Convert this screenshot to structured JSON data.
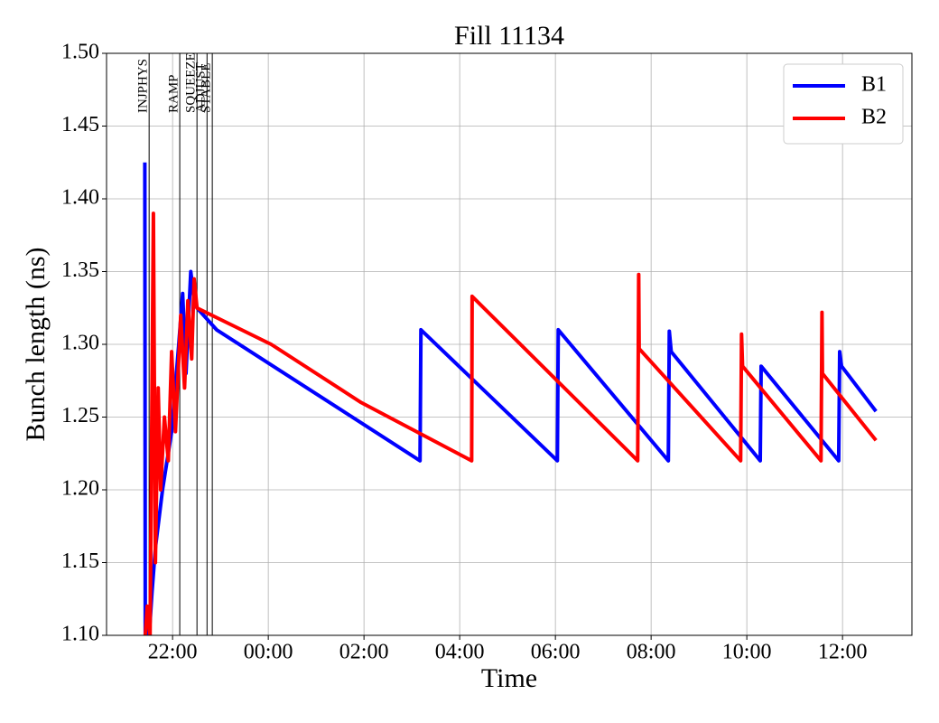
{
  "chart_data": {
    "type": "line",
    "title": "Fill 11134",
    "xlabel": "Time",
    "ylabel": "Bunch length (ns)",
    "xlim": [
      20.62,
      37.45
    ],
    "ylim": [
      1.1,
      1.5
    ],
    "xticks": [
      {
        "value": 22,
        "label": "22:00"
      },
      {
        "value": 24,
        "label": "00:00"
      },
      {
        "value": 26,
        "label": "02:00"
      },
      {
        "value": 28,
        "label": "04:00"
      },
      {
        "value": 30,
        "label": "06:00"
      },
      {
        "value": 32,
        "label": "08:00"
      },
      {
        "value": 34,
        "label": "10:00"
      },
      {
        "value": 36,
        "label": "12:00"
      }
    ],
    "yticks": [
      {
        "value": 1.1,
        "label": "1.10"
      },
      1.15,
      {
        "value": 1.2,
        "label": "1.20"
      },
      1.25,
      {
        "value": 1.3,
        "label": "1.30"
      },
      1.35,
      {
        "value": 1.4,
        "label": "1.40"
      },
      1.45,
      {
        "value": 1.5,
        "label": "1.50"
      }
    ],
    "grid": true,
    "legend": "upper right",
    "phases": [
      {
        "label": "INJPHYS",
        "x": 21.51
      },
      {
        "label": "RAMP",
        "x": 22.15
      },
      {
        "label": "SQUEEZE",
        "x": 22.51
      },
      {
        "label": "ADJUST",
        "x": 22.72
      },
      {
        "label": "STABLE",
        "x": 22.83
      }
    ],
    "series": [
      {
        "name": "B1",
        "color": "#0000ff",
        "x": [
          21.42,
          21.43,
          21.45,
          21.51,
          21.57,
          21.64,
          21.79,
          21.98,
          22.13,
          22.21,
          22.28,
          22.38,
          22.45,
          22.51,
          22.92,
          27.17,
          27.19,
          30.04,
          30.06,
          32.36,
          32.38,
          32.42,
          34.28,
          34.3,
          35.92,
          35.94,
          35.98,
          36.7
        ],
        "values": [
          1.425,
          1.1,
          1.12,
          1.1,
          1.13,
          1.16,
          1.2,
          1.24,
          1.3,
          1.335,
          1.28,
          1.35,
          1.33,
          1.325,
          1.31,
          1.22,
          1.31,
          1.22,
          1.31,
          1.22,
          1.309,
          1.295,
          1.22,
          1.285,
          1.22,
          1.295,
          1.285,
          1.254
        ]
      },
      {
        "name": "B2",
        "color": "#ff0000",
        "x": [
          21.43,
          21.47,
          21.53,
          21.6,
          21.64,
          21.7,
          21.75,
          21.83,
          21.91,
          21.98,
          22.06,
          22.17,
          22.25,
          22.32,
          22.4,
          22.45,
          22.51,
          24.06,
          25.94,
          28.25,
          28.26,
          31.72,
          31.74,
          31.75,
          33.87,
          33.89,
          33.91,
          35.55,
          35.57,
          35.58,
          36.7
        ],
        "values": [
          1.1,
          1.12,
          1.1,
          1.39,
          1.15,
          1.27,
          1.2,
          1.25,
          1.22,
          1.295,
          1.24,
          1.32,
          1.27,
          1.33,
          1.29,
          1.345,
          1.325,
          1.3,
          1.26,
          1.22,
          1.333,
          1.22,
          1.348,
          1.297,
          1.22,
          1.307,
          1.285,
          1.22,
          1.322,
          1.28,
          1.234
        ]
      }
    ]
  }
}
